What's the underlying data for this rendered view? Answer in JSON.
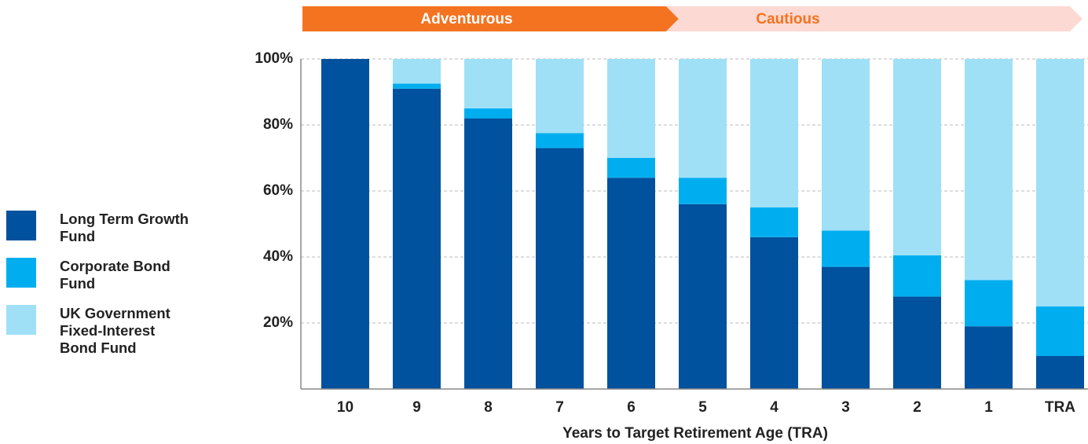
{
  "chart_data": {
    "type": "stacked_bar",
    "phases": [
      "Adventurous",
      "Cautious"
    ],
    "xlabel": "Years to Target Retirement Age (TRA)",
    "categories": [
      "10",
      "9",
      "8",
      "7",
      "6",
      "5",
      "4",
      "3",
      "2",
      "1",
      "TRA"
    ],
    "series": [
      {
        "name": "Long Term Growth Fund",
        "color": "#00519e",
        "values": [
          100,
          91,
          82,
          73,
          64,
          56,
          46,
          37,
          28,
          19,
          10
        ]
      },
      {
        "name": "Corporate Bond Fund",
        "color": "#00aeef",
        "values": [
          0,
          1.5,
          3,
          4.5,
          6,
          8,
          9,
          11,
          12.5,
          14,
          15
        ]
      },
      {
        "name": "UK Government Fixed-Interest Bond Fund",
        "color": "#9fe0f7",
        "values": [
          0,
          7.5,
          15,
          22.5,
          30,
          36,
          45,
          52,
          59.5,
          67,
          75
        ]
      }
    ],
    "ylim": [
      0,
      100
    ],
    "yticks": [
      {
        "value": 20,
        "label": "20%"
      },
      {
        "value": 40,
        "label": "40%"
      },
      {
        "value": 60,
        "label": "60%"
      },
      {
        "value": 80,
        "label": "80%"
      },
      {
        "value": 100,
        "label": "100%"
      }
    ],
    "grid": true
  }
}
